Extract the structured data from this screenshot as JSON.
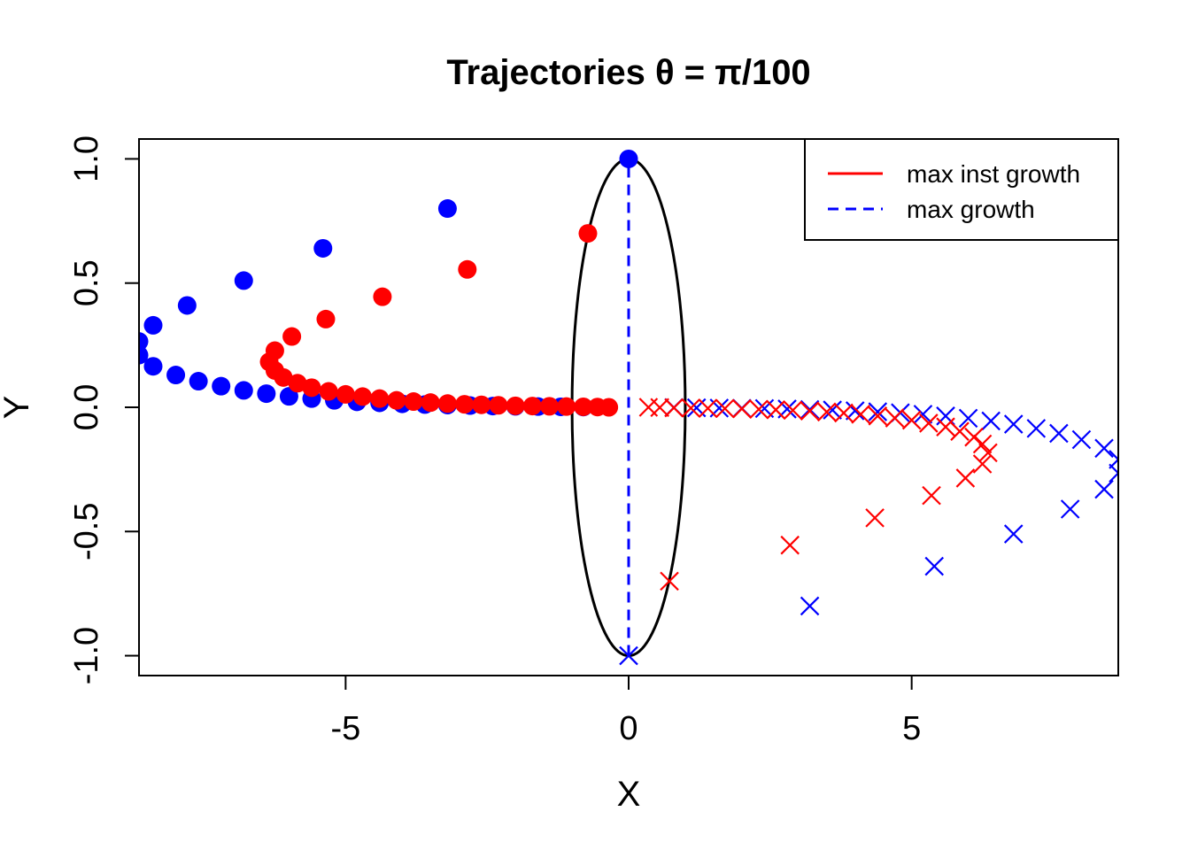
{
  "chart_data": {
    "type": "scatter",
    "title": "Trajectories θ = π/100",
    "xlabel": "X",
    "ylabel": "Y",
    "xlim": [
      -8.65,
      8.65
    ],
    "ylim": [
      -1.08,
      1.08
    ],
    "x_ticks": [
      -5,
      0,
      5
    ],
    "x_tick_labels": [
      "-5",
      "0",
      "5"
    ],
    "y_ticks": [
      -1.0,
      -0.5,
      0.0,
      0.5,
      1.0
    ],
    "y_tick_labels": [
      "-1.0",
      "-0.5",
      "0.0",
      "0.5",
      "1.0"
    ],
    "grid": false,
    "legend": {
      "placement": "top-right",
      "entries": [
        {
          "label": "max inst growth",
          "color": "#ff0000",
          "line": "solid"
        },
        {
          "label": "max growth",
          "color": "#0000ff",
          "line": "dashed"
        }
      ]
    },
    "ellipse": {
      "cx": 0,
      "cy": 0,
      "rx": 1.0,
      "ry": 1.0,
      "color": "#000000"
    },
    "vertical_line": {
      "x": 0,
      "y_from": -1.0,
      "y_to": 1.0,
      "color": "#0000ff",
      "style": "dashed"
    },
    "series": [
      {
        "color": "#0000ff",
        "marker": "dot",
        "points": [
          [
            0.0,
            1.0
          ],
          [
            -3.2,
            0.8
          ],
          [
            -5.4,
            0.64
          ],
          [
            -6.8,
            0.51
          ],
          [
            -7.8,
            0.41
          ],
          [
            -8.4,
            0.33
          ],
          [
            -8.65,
            0.265
          ],
          [
            -8.65,
            0.21
          ],
          [
            -8.4,
            0.165
          ],
          [
            -8.0,
            0.13
          ],
          [
            -7.6,
            0.105
          ],
          [
            -7.2,
            0.085
          ],
          [
            -6.8,
            0.068
          ],
          [
            -6.4,
            0.055
          ],
          [
            -6.0,
            0.044
          ],
          [
            -5.6,
            0.035
          ],
          [
            -5.2,
            0.028
          ],
          [
            -4.8,
            0.022
          ],
          [
            -4.4,
            0.018
          ],
          [
            -4.0,
            0.014
          ],
          [
            -3.6,
            0.011
          ],
          [
            -3.2,
            0.009
          ],
          [
            -2.8,
            0.007
          ],
          [
            -2.4,
            0.005
          ],
          [
            -2.0,
            0.004
          ],
          [
            -1.6,
            0.003
          ],
          [
            -1.2,
            0.002
          ],
          [
            -0.8,
            0.001
          ]
        ]
      },
      {
        "color": "#ff0000",
        "marker": "dot",
        "points": [
          [
            -0.72,
            0.7
          ],
          [
            -2.85,
            0.555
          ],
          [
            -4.35,
            0.445
          ],
          [
            -5.35,
            0.355
          ],
          [
            -5.95,
            0.285
          ],
          [
            -6.25,
            0.228
          ],
          [
            -6.35,
            0.183
          ],
          [
            -6.25,
            0.148
          ],
          [
            -6.1,
            0.12
          ],
          [
            -5.85,
            0.097
          ],
          [
            -5.6,
            0.079
          ],
          [
            -5.3,
            0.064
          ],
          [
            -5.0,
            0.052
          ],
          [
            -4.7,
            0.043
          ],
          [
            -4.4,
            0.035
          ],
          [
            -4.1,
            0.028
          ],
          [
            -3.8,
            0.023
          ],
          [
            -3.5,
            0.019
          ],
          [
            -3.2,
            0.015
          ],
          [
            -2.9,
            0.012
          ],
          [
            -2.6,
            0.01
          ],
          [
            -2.3,
            0.008
          ],
          [
            -2.0,
            0.006
          ],
          [
            -1.7,
            0.005
          ],
          [
            -1.4,
            0.004
          ],
          [
            -1.1,
            0.003
          ],
          [
            -0.8,
            0.002
          ],
          [
            -0.55,
            0.001
          ],
          [
            -0.35,
            0.0
          ]
        ]
      },
      {
        "color": "#0000ff",
        "marker": "cross",
        "points": [
          [
            0.0,
            -1.0
          ],
          [
            3.2,
            -0.8
          ],
          [
            5.4,
            -0.64
          ],
          [
            6.8,
            -0.51
          ],
          [
            7.8,
            -0.41
          ],
          [
            8.4,
            -0.33
          ],
          [
            8.65,
            -0.265
          ],
          [
            8.65,
            -0.21
          ],
          [
            8.4,
            -0.165
          ],
          [
            8.0,
            -0.13
          ],
          [
            7.6,
            -0.105
          ],
          [
            7.2,
            -0.085
          ],
          [
            6.8,
            -0.068
          ],
          [
            6.4,
            -0.055
          ],
          [
            6.0,
            -0.044
          ],
          [
            5.6,
            -0.035
          ],
          [
            5.2,
            -0.028
          ],
          [
            4.8,
            -0.022
          ],
          [
            4.4,
            -0.018
          ],
          [
            4.0,
            -0.014
          ],
          [
            3.6,
            -0.011
          ],
          [
            3.2,
            -0.009
          ],
          [
            2.8,
            -0.007
          ],
          [
            2.4,
            -0.005
          ],
          [
            2.0,
            -0.004
          ],
          [
            1.6,
            -0.003
          ],
          [
            1.2,
            -0.002
          ],
          [
            0.8,
            -0.001
          ]
        ]
      },
      {
        "color": "#ff0000",
        "marker": "cross",
        "points": [
          [
            0.72,
            -0.7
          ],
          [
            2.85,
            -0.555
          ],
          [
            4.35,
            -0.445
          ],
          [
            5.35,
            -0.355
          ],
          [
            5.95,
            -0.285
          ],
          [
            6.25,
            -0.228
          ],
          [
            6.35,
            -0.183
          ],
          [
            6.25,
            -0.148
          ],
          [
            6.1,
            -0.12
          ],
          [
            5.85,
            -0.097
          ],
          [
            5.6,
            -0.079
          ],
          [
            5.3,
            -0.064
          ],
          [
            5.0,
            -0.052
          ],
          [
            4.7,
            -0.043
          ],
          [
            4.4,
            -0.035
          ],
          [
            4.1,
            -0.028
          ],
          [
            3.8,
            -0.023
          ],
          [
            3.5,
            -0.019
          ],
          [
            3.2,
            -0.015
          ],
          [
            2.9,
            -0.012
          ],
          [
            2.6,
            -0.01
          ],
          [
            2.3,
            -0.008
          ],
          [
            2.0,
            -0.006
          ],
          [
            1.7,
            -0.005
          ],
          [
            1.4,
            -0.004
          ],
          [
            1.1,
            -0.003
          ],
          [
            0.8,
            -0.002
          ],
          [
            0.55,
            -0.001
          ],
          [
            0.35,
            0.0
          ]
        ]
      }
    ]
  }
}
